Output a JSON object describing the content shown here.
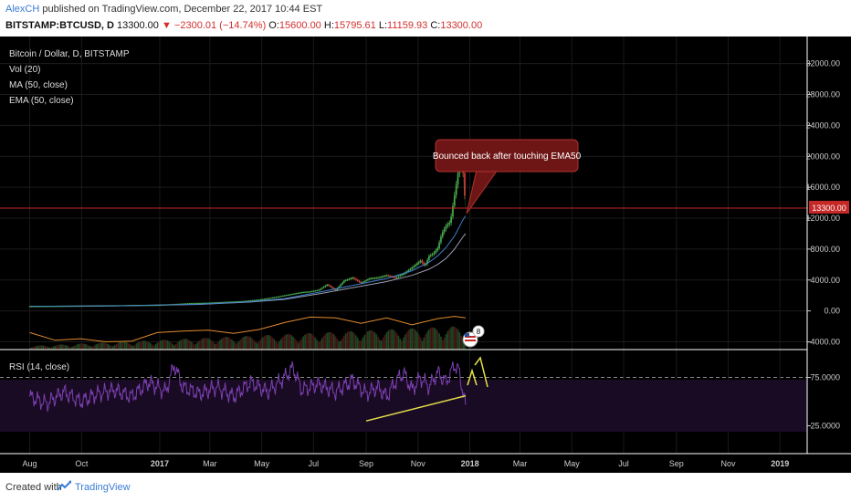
{
  "header": {
    "author": "AlexCH",
    "published_text": "published on TradingView.com, December 22, 2017 10:44 EST",
    "symbol": "BITSTAMP:BTCUSD, D",
    "last": "13300.00",
    "change": "▼ −2300.01 (−14.74%)",
    "open_label": "O:",
    "open": "15600.00",
    "high_label": "H:",
    "high": "15795.61",
    "low_label": "L:",
    "low": "11159.93",
    "close_label": "C:",
    "close": "13300.00"
  },
  "legend": {
    "title": "Bitcoin / Dollar, D, BITSTAMP",
    "vol": "Vol (20)",
    "ma": "MA (50, close)",
    "ema": "EMA (50, close)",
    "rsi": "RSI (14, close)"
  },
  "annotation": {
    "text": "Bounced back after touching EMA50"
  },
  "price_badge": "13300.00",
  "event_badge": "8",
  "footer": {
    "created": "Created with",
    "brand": "TradingView"
  },
  "colors": {
    "background": "#000000",
    "candle_up": "#4caf50",
    "candle_down": "#e53935",
    "ma": "#9aa0b0",
    "ema": "#3f7fd0",
    "vol_line": "#e08a2c",
    "rsi": "#7b3fb0",
    "rsi_band": "#1a0b24",
    "callout": "#6e1616",
    "trendline": "#e8e04a"
  },
  "chart_data": {
    "type": "line",
    "price_axis": {
      "ticks": [
        32000,
        28000,
        24000,
        20000,
        16000,
        12000,
        8000,
        4000,
        0,
        -4000
      ],
      "labels": [
        "32000.00",
        "28000.00",
        "24000.00",
        "20000.00",
        "16000.00",
        "12000.00",
        "8000.00",
        "4000.00",
        "0.00",
        "-4000.00"
      ],
      "ylim": [
        -5000,
        35500
      ]
    },
    "rsi_axis": {
      "ticks": [
        75,
        25
      ],
      "labels": [
        "75.0000",
        "25.0000"
      ],
      "ylim": [
        0,
        100
      ]
    },
    "x_axis": {
      "labels": [
        "Aug",
        "Oct",
        "2017",
        "Mar",
        "May",
        "Jul",
        "Sep",
        "Nov",
        "2018",
        "Mar",
        "May",
        "Jul",
        "Sep",
        "Nov",
        "2019"
      ],
      "day_index": [
        0,
        61,
        153,
        212,
        273,
        334,
        396,
        457,
        518,
        577,
        638,
        699,
        761,
        822,
        883
      ],
      "xlim": [
        -35,
        915
      ]
    },
    "price": {
      "x": [
        0,
        30,
        60,
        90,
        120,
        150,
        170,
        190,
        210,
        230,
        250,
        270,
        290,
        300,
        310,
        320,
        330,
        340,
        350,
        360,
        370,
        380,
        390,
        400,
        410,
        420,
        430,
        440,
        450,
        460,
        465,
        470,
        475,
        480,
        485,
        490,
        495,
        500,
        503,
        506,
        509,
        511,
        513
      ],
      "values": [
        600,
        620,
        650,
        700,
        740,
        760,
        880,
        1000,
        1050,
        1150,
        1250,
        1450,
        1800,
        2000,
        2200,
        2400,
        2500,
        2700,
        3400,
        2700,
        3900,
        4300,
        3600,
        4200,
        4300,
        4600,
        4300,
        4800,
        5600,
        6500,
        5800,
        7100,
        7400,
        8100,
        10000,
        11000,
        11500,
        15000,
        17000,
        19500,
        19200,
        16500,
        13300
      ]
    },
    "ma50": {
      "x": [
        0,
        100,
        200,
        260,
        300,
        340,
        380,
        420,
        450,
        470,
        480,
        490,
        500,
        510,
        513
      ],
      "values": [
        600,
        650,
        850,
        1150,
        1500,
        2200,
        3000,
        3800,
        4600,
        5400,
        6000,
        6800,
        8000,
        9600,
        10000
      ]
    },
    "ema50": {
      "x": [
        0,
        100,
        200,
        260,
        300,
        340,
        380,
        420,
        450,
        470,
        480,
        490,
        500,
        510,
        513
      ],
      "values": [
        600,
        660,
        880,
        1200,
        1600,
        2400,
        3300,
        4200,
        5200,
        6300,
        7100,
        8200,
        9700,
        11800,
        12300
      ]
    },
    "rsi14": {
      "x": [
        0,
        20,
        40,
        60,
        80,
        100,
        120,
        140,
        160,
        170,
        180,
        200,
        220,
        240,
        260,
        280,
        300,
        310,
        320,
        340,
        360,
        380,
        396,
        410,
        420,
        430,
        440,
        450,
        460,
        470,
        480,
        490,
        500,
        505,
        510,
        513
      ],
      "values": [
        55,
        48,
        60,
        50,
        58,
        62,
        55,
        70,
        60,
        88,
        65,
        58,
        65,
        55,
        70,
        60,
        75,
        85,
        62,
        68,
        60,
        72,
        58,
        65,
        55,
        70,
        80,
        62,
        75,
        65,
        80,
        70,
        88,
        82,
        60,
        45
      ]
    },
    "rsi_trendline": {
      "x": [
        396,
        513
      ],
      "values": [
        30,
        56
      ]
    },
    "vol_ma": {
      "x": [
        0,
        30,
        60,
        90,
        120,
        150,
        180,
        210,
        240,
        270,
        300,
        330,
        360,
        390,
        420,
        450,
        480,
        500,
        513
      ],
      "values": [
        -2800,
        -3800,
        -3600,
        -4000,
        -3900,
        -2800,
        -2600,
        -2500,
        -2900,
        -2400,
        -1500,
        -800,
        -900,
        -1600,
        -900,
        -1800,
        -1000,
        -700,
        -900
      ]
    }
  }
}
